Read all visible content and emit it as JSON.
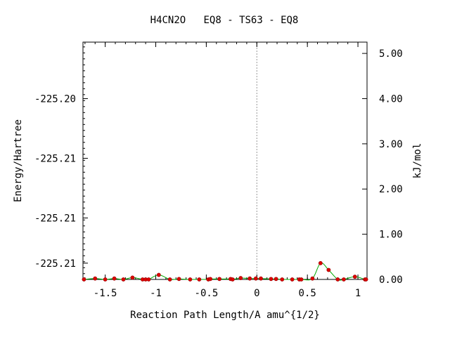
{
  "chart_data": {
    "type": "line",
    "title": "H4CN2O   EQ8 - TS63 - EQ8",
    "xlabel": "Reaction Path Length/A amu^{1/2}",
    "ylabel": "Energy/Hartree",
    "ylabel_right": "kJ/mol",
    "xlim": [
      -1.72,
      1.09
    ],
    "right_ylim": [
      0.0,
      5.25
    ],
    "x_ticks": [
      {
        "v": -1.5,
        "label": "-1.5"
      },
      {
        "v": -1.0,
        "label": "-1"
      },
      {
        "v": -0.5,
        "label": "-0.5"
      },
      {
        "v": 0.0,
        "label": "0"
      },
      {
        "v": 0.5,
        "label": "0.5"
      },
      {
        "v": 1.0,
        "label": "1"
      }
    ],
    "left_ticks": [
      {
        "kj": 4.0,
        "label": "-225.20"
      },
      {
        "kj": 2.68,
        "label": "-225.21"
      },
      {
        "kj": 1.36,
        "label": "-225.21"
      },
      {
        "kj": 0.36,
        "label": "-225.21"
      }
    ],
    "right_ticks": [
      {
        "v": 0.0,
        "label": "0.00"
      },
      {
        "v": 1.0,
        "label": "1.00"
      },
      {
        "v": 2.0,
        "label": "2.00"
      },
      {
        "v": 3.0,
        "label": "3.00"
      },
      {
        "v": 4.0,
        "label": "4.00"
      },
      {
        "v": 5.0,
        "label": "5.00"
      }
    ],
    "ts_marker_x": 0.0,
    "grid": false,
    "series": [
      {
        "line_color": "#00aa00",
        "marker_color": "#dd0000",
        "points": [
          [
            -1.71,
            0.0
          ],
          [
            -1.6,
            0.02
          ],
          [
            -1.5,
            0.0
          ],
          [
            -1.41,
            0.02
          ],
          [
            -1.32,
            0.0
          ],
          [
            -1.23,
            0.04
          ],
          [
            -1.13,
            0.0
          ],
          [
            -1.1,
            0.0
          ],
          [
            -1.07,
            0.0
          ],
          [
            -0.97,
            0.1
          ],
          [
            -0.86,
            0.0
          ],
          [
            -0.77,
            0.01
          ],
          [
            -0.66,
            0.0
          ],
          [
            -0.57,
            0.0
          ],
          [
            -0.48,
            0.0
          ],
          [
            -0.46,
            0.01
          ],
          [
            -0.37,
            0.01
          ],
          [
            -0.26,
            0.01
          ],
          [
            -0.24,
            0.0
          ],
          [
            -0.16,
            0.03
          ],
          [
            -0.07,
            0.02
          ],
          [
            -0.01,
            0.02
          ],
          [
            0.04,
            0.02
          ],
          [
            0.14,
            0.01
          ],
          [
            0.19,
            0.01
          ],
          [
            0.25,
            0.0
          ],
          [
            0.35,
            0.0
          ],
          [
            0.42,
            0.0
          ],
          [
            0.44,
            0.0
          ],
          [
            0.55,
            0.02
          ],
          [
            0.63,
            0.36
          ],
          [
            0.71,
            0.21
          ],
          [
            0.8,
            0.0
          ],
          [
            0.86,
            0.0
          ],
          [
            0.97,
            0.06
          ],
          [
            1.07,
            0.0
          ],
          [
            1.08,
            0.0
          ]
        ]
      }
    ]
  }
}
